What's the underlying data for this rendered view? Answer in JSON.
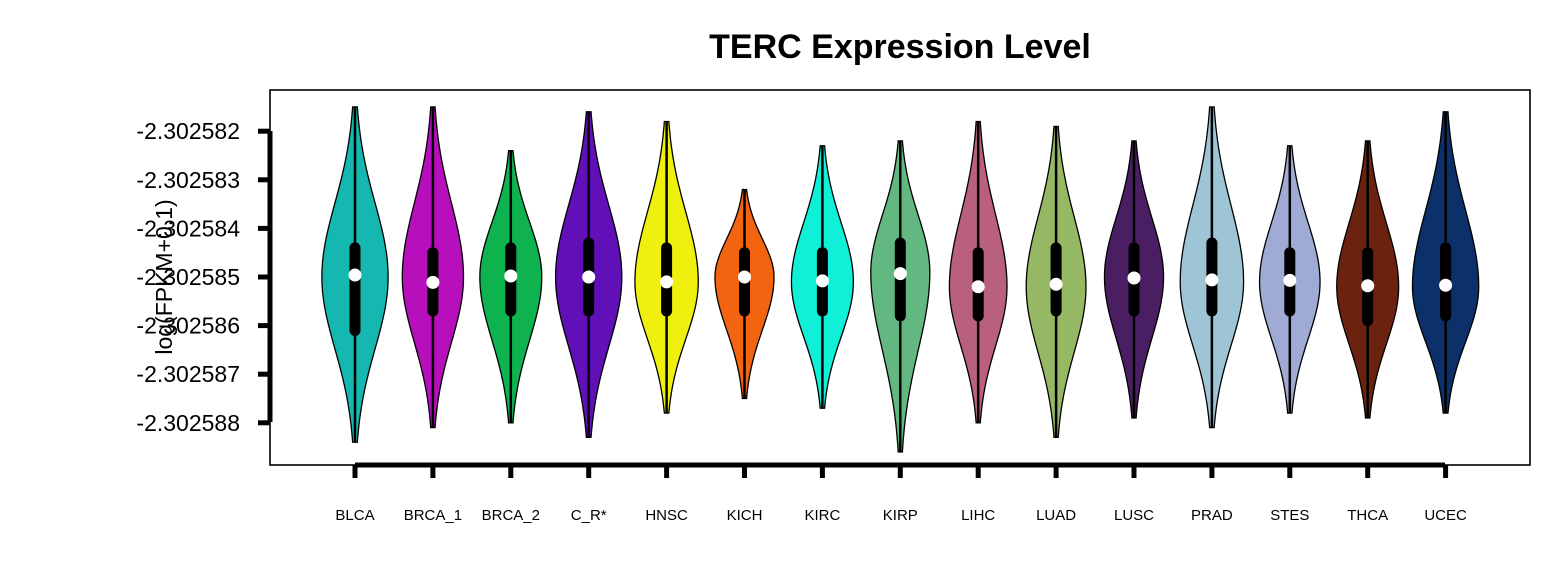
{
  "chart_data": {
    "type": "violin",
    "title": "TERC Expression Level",
    "ylabel": "log(FPKM+0.1)",
    "xlabel": "",
    "ylim": [
      -2.3025879,
      -2.3025812
    ],
    "yticks": [
      -2.302582,
      -2.302583,
      -2.302584,
      -2.302585,
      -2.302586,
      -2.302587,
      -2.302588
    ],
    "ytick_labels": [
      "-2.302582",
      "-2.302583",
      "-2.302584",
      "-2.302585",
      "-2.302586",
      "-2.302587",
      "-2.302588"
    ],
    "categories": [
      "BLCA",
      "BRCA_1",
      "BRCA_2",
      "C_R*",
      "HNSC",
      "KICH",
      "KIRC",
      "KIRP",
      "LIHC",
      "LUAD",
      "LUSC",
      "PRAD",
      "STES",
      "THCA",
      "UCEC"
    ],
    "colors": [
      "#14b8b1",
      "#b80fbd",
      "#0eb24f",
      "#6110b8",
      "#f0f00e",
      "#f26410",
      "#10f0d8",
      "#62b880",
      "#b8607e",
      "#96b864",
      "#4a1e62",
      "#9ec5d6",
      "#9fabd4",
      "#6b2310",
      "#0c306a"
    ],
    "grid": false,
    "legend": "none",
    "series": [
      {
        "name": "BLCA",
        "min": -2.3025884,
        "q1": -2.3025861,
        "median": -2.30258496,
        "q3": -2.3025844,
        "max": -2.3025815,
        "mode": -2.302585,
        "spread": 0.92
      },
      {
        "name": "BRCA_1",
        "min": -2.3025881,
        "q1": -2.3025857,
        "median": -2.30258511,
        "q3": -2.3025845,
        "max": -2.3025815,
        "mode": -2.302585,
        "spread": 0.85
      },
      {
        "name": "BRCA_2",
        "min": -2.302588,
        "q1": -2.3025857,
        "median": -2.30258498,
        "q3": -2.3025844,
        "max": -2.3025824,
        "mode": -2.302585,
        "spread": 0.86
      },
      {
        "name": "C_R*",
        "min": -2.3025883,
        "q1": -2.3025857,
        "median": -2.302585,
        "q3": -2.3025843,
        "max": -2.3025816,
        "mode": -2.302585,
        "spread": 0.92
      },
      {
        "name": "HNSC",
        "min": -2.3025878,
        "q1": -2.3025857,
        "median": -2.3025851,
        "q3": -2.3025844,
        "max": -2.3025818,
        "mode": -2.3025851,
        "spread": 0.88
      },
      {
        "name": "KICH",
        "min": -2.3025875,
        "q1": -2.3025857,
        "median": -2.302585,
        "q3": -2.3025845,
        "max": -2.3025832,
        "mode": -2.302585,
        "spread": 0.82
      },
      {
        "name": "KIRC",
        "min": -2.3025877,
        "q1": -2.3025857,
        "median": -2.30258508,
        "q3": -2.3025845,
        "max": -2.3025823,
        "mode": -2.3025851,
        "spread": 0.86
      },
      {
        "name": "KIRP",
        "min": -2.3025886,
        "q1": -2.3025858,
        "median": -2.30258493,
        "q3": -2.3025843,
        "max": -2.3025822,
        "mode": -2.3025849,
        "spread": 0.82
      },
      {
        "name": "LIHC",
        "min": -2.302588,
        "q1": -2.3025858,
        "median": -2.3025852,
        "q3": -2.3025845,
        "max": -2.3025818,
        "mode": -2.3025852,
        "spread": 0.8
      },
      {
        "name": "LUAD",
        "min": -2.3025883,
        "q1": -2.3025857,
        "median": -2.30258515,
        "q3": -2.3025844,
        "max": -2.3025819,
        "mode": -2.3025852,
        "spread": 0.83
      },
      {
        "name": "LUSC",
        "min": -2.3025879,
        "q1": -2.3025857,
        "median": -2.30258502,
        "q3": -2.3025844,
        "max": -2.3025822,
        "mode": -2.302585,
        "spread": 0.82
      },
      {
        "name": "PRAD",
        "min": -2.3025881,
        "q1": -2.3025857,
        "median": -2.30258506,
        "q3": -2.3025843,
        "max": -2.3025815,
        "mode": -2.3025851,
        "spread": 0.88
      },
      {
        "name": "STES",
        "min": -2.3025878,
        "q1": -2.3025857,
        "median": -2.30258507,
        "q3": -2.3025845,
        "max": -2.3025823,
        "mode": -2.3025851,
        "spread": 0.84
      },
      {
        "name": "THCA",
        "min": -2.3025879,
        "q1": -2.3025859,
        "median": -2.30258518,
        "q3": -2.3025845,
        "max": -2.3025822,
        "mode": -2.3025852,
        "spread": 0.86
      },
      {
        "name": "UCEC",
        "min": -2.3025878,
        "q1": -2.3025858,
        "median": -2.30258517,
        "q3": -2.3025844,
        "max": -2.3025816,
        "mode": -2.3025852,
        "spread": 0.92
      }
    ]
  }
}
